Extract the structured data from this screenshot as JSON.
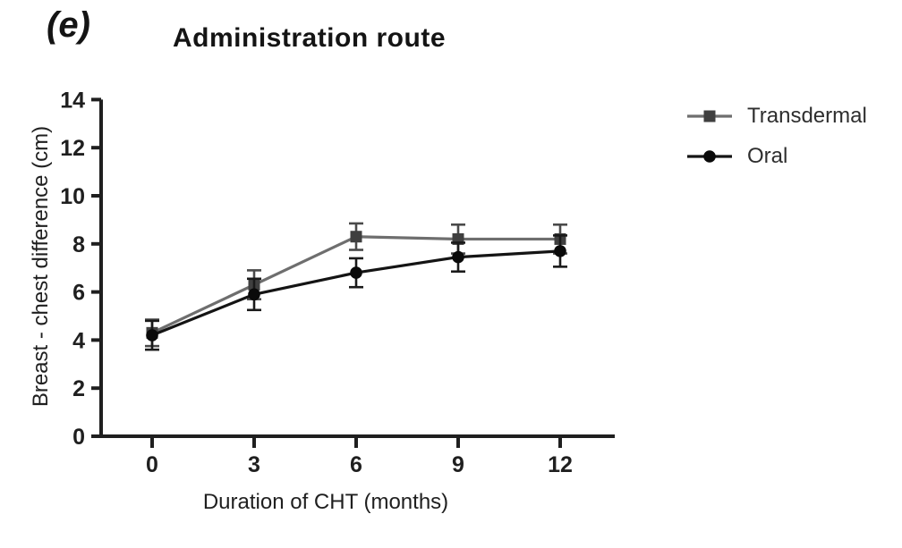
{
  "figure": {
    "panel_label": "(e)",
    "title": "Administration route"
  },
  "chart_data": {
    "type": "line",
    "title": "Administration route",
    "xlabel": "Duration of CHT (months)",
    "ylabel": "Breast - chest difference (cm)",
    "x": [
      0,
      3,
      6,
      9,
      12
    ],
    "x_ticks": [
      "0",
      "3",
      "6",
      "9",
      "12"
    ],
    "y_ticks": [
      0,
      2,
      4,
      6,
      8,
      10,
      12,
      14
    ],
    "ylim": [
      0,
      14
    ],
    "xlim": [
      -1.5,
      13.6
    ],
    "grid": false,
    "legend_position": "right",
    "axis_color": "#1f1f1f",
    "series": [
      {
        "name": "Transdermal",
        "marker": "square",
        "line_color": "#6e6e6e",
        "marker_color": "#3f3f3f",
        "error_color": "#4a4a4a",
        "values": [
          4.3,
          6.3,
          8.3,
          8.2,
          8.2
        ],
        "errors": [
          0.55,
          0.6,
          0.55,
          0.6,
          0.6
        ]
      },
      {
        "name": "Oral",
        "marker": "circle",
        "line_color": "#141414",
        "marker_color": "#0a0a0a",
        "error_color": "#1a1a1a",
        "values": [
          4.2,
          5.9,
          6.8,
          7.45,
          7.7
        ],
        "errors": [
          0.6,
          0.65,
          0.6,
          0.6,
          0.65
        ]
      }
    ]
  }
}
